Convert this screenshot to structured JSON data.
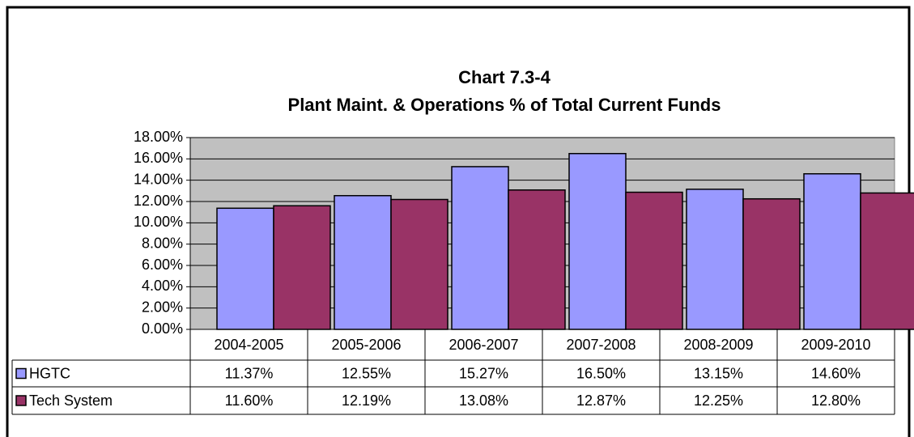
{
  "chart_data": {
    "type": "bar",
    "title": "Chart 7.3-4",
    "subtitle": "Plant Maint. & Operations % of Total Current Funds",
    "categories": [
      "2004-2005",
      "2005-2006",
      "2006-2007",
      "2007-2008",
      "2008-2009",
      "2009-2010"
    ],
    "series": [
      {
        "name": "HGTC",
        "color": "#9999ff",
        "values": [
          11.37,
          12.55,
          15.27,
          16.5,
          13.15,
          14.6
        ],
        "value_labels": [
          "11.37%",
          "12.55%",
          "15.27%",
          "16.50%",
          "13.15%",
          "14.60%"
        ]
      },
      {
        "name": "Tech System",
        "color": "#993366",
        "values": [
          11.6,
          12.19,
          13.08,
          12.87,
          12.25,
          12.8
        ],
        "value_labels": [
          "11.60%",
          "12.19%",
          "13.08%",
          "12.87%",
          "12.25%",
          "12.80%"
        ]
      }
    ],
    "ylim": [
      0,
      18
    ],
    "yticks": [
      {
        "value": 0,
        "label": "0.00%"
      },
      {
        "value": 2,
        "label": "2.00%"
      },
      {
        "value": 4,
        "label": "4.00%"
      },
      {
        "value": 6,
        "label": "6.00%"
      },
      {
        "value": 8,
        "label": "8.00%"
      },
      {
        "value": 10,
        "label": "10.00%"
      },
      {
        "value": 12,
        "label": "12.00%"
      },
      {
        "value": 14,
        "label": "14.00%"
      },
      {
        "value": 16,
        "label": "16.00%"
      },
      {
        "value": 18,
        "label": "18.00%"
      }
    ],
    "grid": true,
    "plot_background": "#c0c0c0"
  }
}
